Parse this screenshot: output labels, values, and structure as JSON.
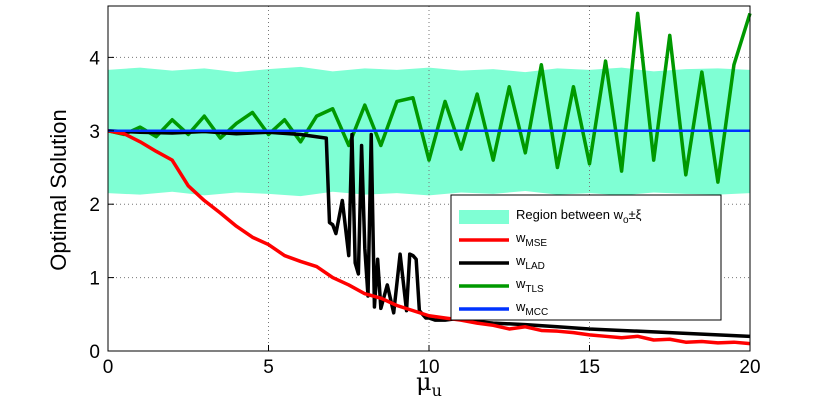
{
  "chart_data": {
    "type": "line",
    "xlabel_main": "μ",
    "xlabel_sub": "u",
    "ylabel": "Optimal Solution",
    "xlim": [
      0,
      20
    ],
    "ylim": [
      0,
      4.7
    ],
    "xticks": [
      0,
      5,
      10,
      15,
      20
    ],
    "yticks": [
      0,
      1,
      2,
      3,
      4
    ],
    "grid": true,
    "legend_position": "lower-right",
    "legend": [
      {
        "key": "band",
        "prefix": "Region between w",
        "sub": "o",
        "suffix": "±ξ",
        "color": "#7fffd4"
      },
      {
        "key": "mse",
        "prefix": "w",
        "sub": "MSE",
        "suffix": "",
        "color": "#ff0000"
      },
      {
        "key": "lad",
        "prefix": "w",
        "sub": "LAD",
        "suffix": "",
        "color": "#000000"
      },
      {
        "key": "tls",
        "prefix": "w",
        "sub": "TLS",
        "suffix": "",
        "color": "#009900"
      },
      {
        "key": "mcc",
        "prefix": "w",
        "sub": "MCC",
        "suffix": "",
        "color": "#0033ff"
      }
    ],
    "band": {
      "x": [
        0,
        1,
        2,
        3,
        4,
        5,
        6,
        7,
        8,
        9,
        10,
        11,
        12,
        13,
        14,
        15,
        16,
        17,
        18,
        19,
        20
      ],
      "upper": [
        3.83,
        3.86,
        3.82,
        3.85,
        3.8,
        3.84,
        3.87,
        3.81,
        3.85,
        3.83,
        3.86,
        3.82,
        3.84,
        3.8,
        3.85,
        3.83,
        3.86,
        3.81,
        3.84,
        3.85,
        3.83
      ],
      "lower": [
        2.15,
        2.13,
        2.17,
        2.12,
        2.16,
        2.14,
        2.11,
        2.17,
        2.13,
        2.15,
        2.12,
        2.16,
        2.14,
        2.18,
        2.13,
        2.15,
        2.12,
        2.16,
        2.14,
        2.13,
        2.15
      ]
    },
    "series": [
      {
        "name": "w_MSE",
        "key": "mse",
        "color": "#ff0000",
        "x": [
          0,
          0.5,
          1,
          1.5,
          2,
          2.5,
          3,
          3.5,
          4,
          4.5,
          5,
          5.5,
          6,
          6.5,
          7,
          7.5,
          8,
          8.5,
          9,
          9.5,
          10,
          10.5,
          11,
          11.5,
          12,
          12.5,
          13,
          13.5,
          14,
          14.5,
          15,
          15.5,
          16,
          16.5,
          17,
          17.5,
          18,
          18.5,
          19,
          19.5,
          20
        ],
        "values": [
          3.0,
          2.96,
          2.85,
          2.72,
          2.6,
          2.25,
          2.05,
          1.88,
          1.7,
          1.55,
          1.45,
          1.3,
          1.22,
          1.15,
          1.0,
          0.9,
          0.78,
          0.72,
          0.62,
          0.55,
          0.48,
          0.45,
          0.42,
          0.38,
          0.35,
          0.3,
          0.33,
          0.28,
          0.27,
          0.25,
          0.22,
          0.2,
          0.18,
          0.2,
          0.15,
          0.16,
          0.12,
          0.13,
          0.11,
          0.12,
          0.1
        ]
      },
      {
        "name": "w_LAD",
        "key": "lad",
        "color": "#000000",
        "x": [
          0,
          1,
          2,
          3,
          4,
          5,
          6,
          6.8,
          6.9,
          7.0,
          7.1,
          7.3,
          7.5,
          7.6,
          7.7,
          7.8,
          7.9,
          8.0,
          8.1,
          8.2,
          8.3,
          8.4,
          8.5,
          8.7,
          8.9,
          9.1,
          9.3,
          9.4,
          9.5,
          9.6,
          9.7,
          9.8,
          9.9,
          10.0,
          10.2,
          10.5,
          11,
          11.5,
          12,
          13,
          14,
          15,
          16,
          17,
          18,
          19,
          20
        ],
        "values": [
          3.0,
          2.98,
          2.97,
          2.99,
          2.96,
          2.98,
          2.95,
          2.9,
          1.75,
          1.72,
          1.6,
          2.05,
          1.3,
          2.95,
          1.2,
          1.05,
          2.8,
          1.4,
          0.75,
          2.95,
          0.6,
          1.25,
          0.58,
          0.9,
          0.52,
          1.32,
          0.55,
          1.32,
          1.3,
          1.25,
          0.55,
          0.5,
          0.45,
          0.45,
          0.42,
          0.42,
          0.45,
          0.4,
          0.38,
          0.36,
          0.33,
          0.3,
          0.28,
          0.26,
          0.24,
          0.22,
          0.2
        ]
      },
      {
        "name": "w_TLS",
        "key": "tls",
        "color": "#009900",
        "x": [
          0,
          0.5,
          1,
          1.5,
          2,
          2.5,
          3,
          3.5,
          4,
          4.5,
          5,
          5.5,
          6,
          6.5,
          7,
          7.5,
          8,
          8.5,
          9,
          9.5,
          10,
          10.5,
          11,
          11.5,
          12,
          12.5,
          13,
          13.5,
          14,
          14.5,
          15,
          15.5,
          16,
          16.5,
          17,
          17.5,
          18,
          18.5,
          19,
          19.5,
          20
        ],
        "values": [
          3.0,
          2.95,
          3.05,
          2.92,
          3.15,
          2.95,
          3.2,
          2.9,
          3.1,
          3.25,
          2.95,
          3.15,
          2.85,
          3.2,
          3.3,
          2.8,
          3.35,
          2.8,
          3.4,
          3.45,
          2.6,
          3.4,
          2.75,
          3.5,
          2.6,
          3.6,
          2.7,
          3.9,
          2.5,
          3.6,
          2.55,
          3.95,
          2.45,
          4.6,
          2.6,
          4.3,
          2.4,
          3.8,
          2.3,
          3.9,
          4.6
        ]
      },
      {
        "name": "w_MCC",
        "key": "mcc",
        "color": "#0033ff",
        "x": [
          0,
          20
        ],
        "values": [
          3.0,
          3.0
        ]
      }
    ]
  }
}
